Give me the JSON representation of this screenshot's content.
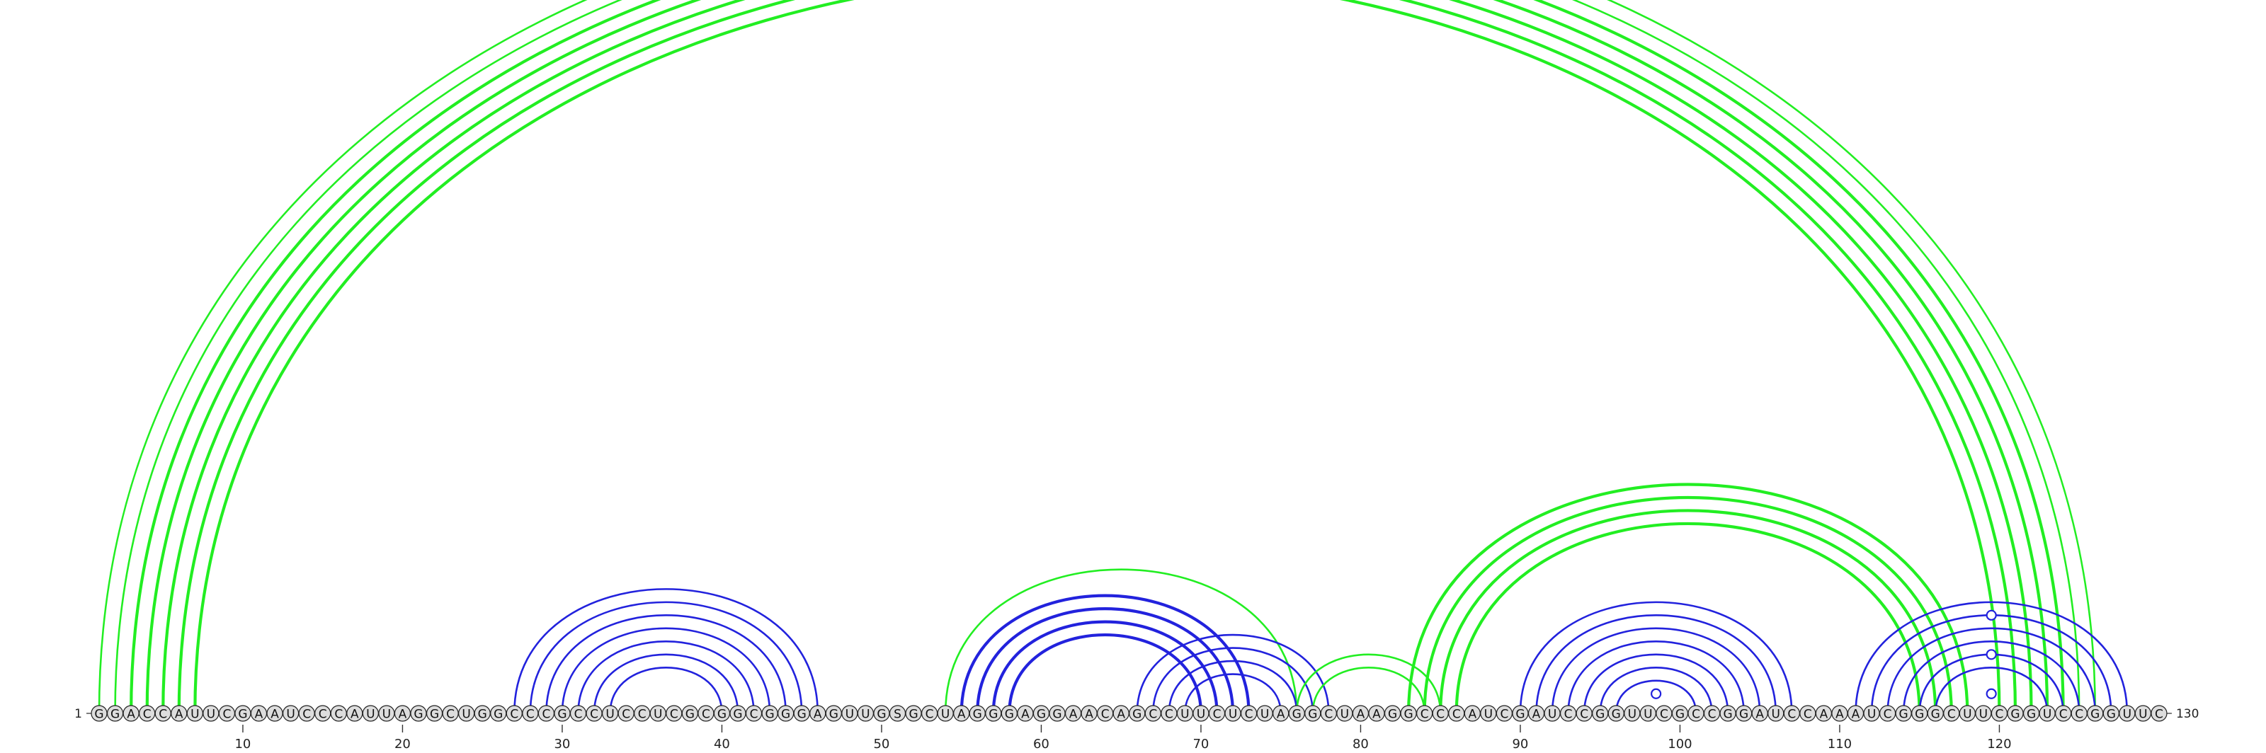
{
  "sequence": "GGACCAUUCGAAUCCCAUUAGGCUGGCCCGCCUCCUCGCGGCGGGAGUUGSGCUAGGGAGGAACAGCCUUCUCUAGGCUAAGGCCCAUCGAUCCGGUUCGCCGGAUCCAAAUCGGGCUUCGGUCCGGUUC",
  "start_label": "1",
  "end_label": "130",
  "ticks": [
    10,
    20,
    30,
    40,
    50,
    60,
    70,
    80,
    90,
    100,
    110,
    120
  ],
  "colors": {
    "green": "#22ee22",
    "blue": "#2222dd",
    "backbone": "#555555",
    "nucleotide_fill": "#dddddd",
    "nucleotide_stroke": "#222222"
  },
  "helices": [
    {
      "color": "green",
      "i": 1,
      "j": 126,
      "n": 2,
      "weight": "thin"
    },
    {
      "color": "green",
      "i": 3,
      "j": 124,
      "n": 3,
      "weight": "thick"
    },
    {
      "color": "green",
      "i": 6,
      "j": 121,
      "n": 2,
      "weight": "thick"
    },
    {
      "color": "blue",
      "i": 27,
      "j": 46,
      "n": 7,
      "weight": "normal"
    },
    {
      "color": "green",
      "i": 54,
      "j": 76,
      "n": 1,
      "weight": "normal"
    },
    {
      "color": "blue",
      "i": 55,
      "j": 73,
      "n": 4,
      "weight": "thick"
    },
    {
      "color": "blue",
      "i": 66,
      "j": 78,
      "n": 4,
      "weight": "normal"
    },
    {
      "color": "green",
      "i": 76,
      "j": 85,
      "n": 2,
      "weight": "normal"
    },
    {
      "color": "green",
      "i": 83,
      "j": 118,
      "n": 4,
      "weight": "thick"
    },
    {
      "color": "blue",
      "i": 90,
      "j": 107,
      "n": 7,
      "weight": "normal"
    },
    {
      "color": "blue",
      "i": 111,
      "j": 128,
      "n": 6,
      "weight": "normal"
    }
  ],
  "markers": [
    {
      "color": "green",
      "i": 1,
      "j": 126
    },
    {
      "color": "blue",
      "i": 97,
      "j": 100
    },
    {
      "color": "blue",
      "i": 118,
      "j": 121
    },
    {
      "color": "blue",
      "i": 115,
      "j": 124
    },
    {
      "color": "blue",
      "i": 112,
      "j": 127
    }
  ]
}
